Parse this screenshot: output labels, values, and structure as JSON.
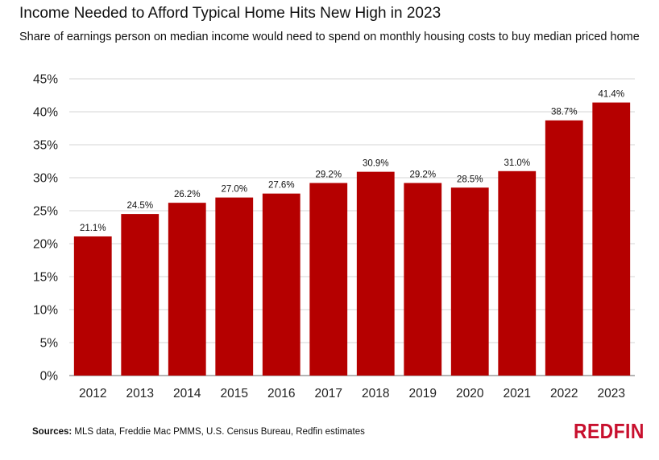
{
  "chart_data": {
    "type": "bar",
    "title": "Income Needed to Afford Typical Home Hits New High in 2023",
    "subtitle": "Share of earnings person on median income would need to spend on monthly housing costs to buy median priced home",
    "categories": [
      "2012",
      "2013",
      "2014",
      "2015",
      "2016",
      "2017",
      "2018",
      "2019",
      "2020",
      "2021",
      "2022",
      "2023"
    ],
    "values": [
      21.1,
      24.5,
      26.2,
      27.0,
      27.6,
      29.2,
      30.9,
      29.2,
      28.5,
      31.0,
      38.7,
      41.4
    ],
    "value_labels": [
      "21.1%",
      "24.5%",
      "26.2%",
      "27.0%",
      "27.6%",
      "29.2%",
      "30.9%",
      "29.2%",
      "28.5%",
      "31.0%",
      "38.7%",
      "41.4%"
    ],
    "yticks": [
      0,
      5,
      10,
      15,
      20,
      25,
      30,
      35,
      40,
      45
    ],
    "ytick_labels": [
      "0%",
      "5%",
      "10%",
      "15%",
      "20%",
      "25%",
      "30%",
      "35%",
      "40%",
      "45%"
    ],
    "ylim": [
      0,
      45
    ],
    "grid": true,
    "bar_color": "#b50000",
    "grid_color": "#d6d6d6"
  },
  "footer": {
    "source_label": "Sources:",
    "source_text": " MLS data, Freddie Mac PMMS, U.S. Census Bureau, Redfin estimates",
    "logo_text": "REDFIN"
  }
}
